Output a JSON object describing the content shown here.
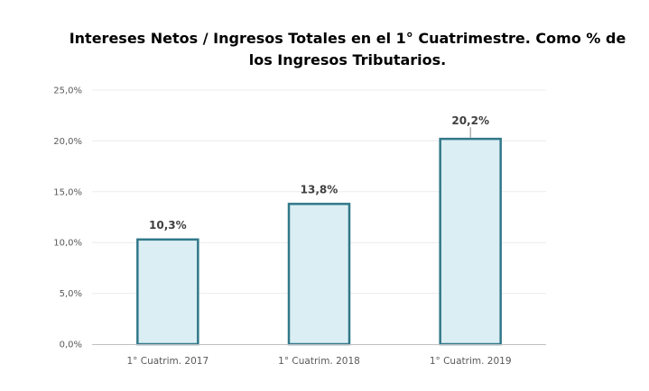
{
  "chart_data": {
    "type": "bar",
    "title": "Intereses Netos / Ingresos Totales en el 1° Cuatrimestre. Como % de los Ingresos Tributarios.",
    "categories": [
      "1° Cuatrim. 2017",
      "1° Cuatrim. 2018",
      "1° Cuatrim. 2019"
    ],
    "values": [
      10.3,
      13.8,
      20.2
    ],
    "data_labels": [
      "10,3%",
      "13,8%",
      "20,2%"
    ],
    "y_ticks": [
      0,
      5,
      10,
      15,
      20,
      25
    ],
    "y_tick_labels": [
      "0,0%",
      "5,0%",
      "10,0%",
      "15,0%",
      "20,0%",
      "25,0%"
    ],
    "ylim": [
      0,
      25
    ],
    "xlabel": "",
    "ylabel": "",
    "grid": true,
    "legend": "none",
    "colors": {
      "bar_fill": "#daeef3",
      "bar_stroke": "#31788a",
      "grid": "#ececec",
      "axis": "#bfbfbf"
    }
  }
}
